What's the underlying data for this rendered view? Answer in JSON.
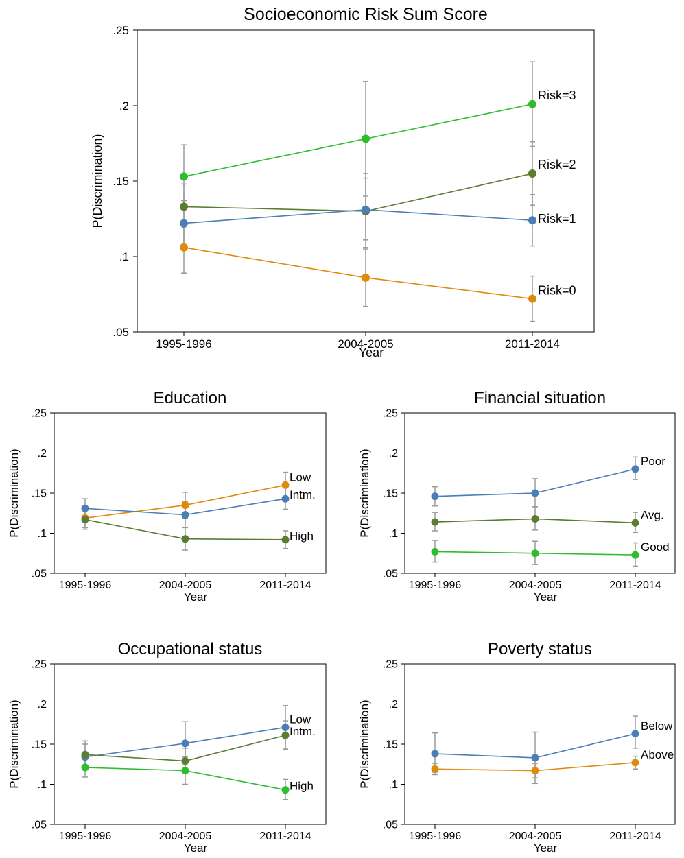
{
  "chart_data": [
    {
      "type": "line",
      "title": "Socioeconomic Risk Sum Score",
      "xlabel": "Year",
      "ylabel": "P(Discrimination)",
      "categories": [
        "1995-1996",
        "2004-2005",
        "2011-2014"
      ],
      "yticks": [
        ".05",
        ".1",
        ".15",
        ".2",
        ".25"
      ],
      "ylim": [
        0.05,
        0.25
      ],
      "grid": false,
      "legend": "inline-labels",
      "series": [
        {
          "name": "Risk=3",
          "color": "#2dbd2d",
          "values": [
            0.153,
            0.178,
            0.201
          ],
          "ci_low": [
            0.132,
            0.14,
            0.173
          ],
          "ci_high": [
            0.174,
            0.216,
            0.229
          ]
        },
        {
          "name": "Risk=2",
          "color": "#5a7d32",
          "values": [
            0.133,
            0.13,
            0.155
          ],
          "ci_low": [
            0.119,
            0.106,
            0.134
          ],
          "ci_high": [
            0.148,
            0.155,
            0.176
          ]
        },
        {
          "name": "Risk=1",
          "color": "#4a7eb5",
          "values": [
            0.122,
            0.131,
            0.124
          ],
          "ci_low": [
            0.107,
            0.111,
            0.107
          ],
          "ci_high": [
            0.137,
            0.152,
            0.141
          ]
        },
        {
          "name": "Risk=0",
          "color": "#e08a0c",
          "values": [
            0.106,
            0.086,
            0.072
          ],
          "ci_low": [
            0.089,
            0.067,
            0.057
          ],
          "ci_high": [
            0.123,
            0.105,
            0.087
          ]
        }
      ]
    },
    {
      "type": "line",
      "title": "Education",
      "xlabel": "Year",
      "ylabel": "P(Discrimination)",
      "categories": [
        "1995-1996",
        "2004-2005",
        "2011-2014"
      ],
      "yticks": [
        ".05",
        ".1",
        ".15",
        ".2",
        ".25"
      ],
      "ylim": [
        0.05,
        0.25
      ],
      "grid": false,
      "legend": "inline-labels",
      "series": [
        {
          "name": "Low",
          "color": "#e08a0c",
          "values": [
            0.119,
            0.135,
            0.16
          ],
          "ci_low": [
            0.107,
            0.119,
            0.144
          ],
          "ci_high": [
            0.131,
            0.151,
            0.176
          ]
        },
        {
          "name": "Intm.",
          "color": "#4a7eb5",
          "values": [
            0.131,
            0.123,
            0.143
          ],
          "ci_low": [
            0.119,
            0.107,
            0.13
          ],
          "ci_high": [
            0.143,
            0.139,
            0.157
          ]
        },
        {
          "name": "High",
          "color": "#5a7d32",
          "values": [
            0.117,
            0.093,
            0.092
          ],
          "ci_low": [
            0.105,
            0.079,
            0.081
          ],
          "ci_high": [
            0.129,
            0.107,
            0.103
          ]
        }
      ]
    },
    {
      "type": "line",
      "title": "Financial situation",
      "xlabel": "Year",
      "ylabel": "P(Discrimination)",
      "categories": [
        "1995-1996",
        "2004-2005",
        "2011-2014"
      ],
      "yticks": [
        ".05",
        ".1",
        ".15",
        ".2",
        ".25"
      ],
      "ylim": [
        0.05,
        0.25
      ],
      "grid": false,
      "legend": "inline-labels",
      "series": [
        {
          "name": "Poor",
          "color": "#4a7eb5",
          "values": [
            0.146,
            0.15,
            0.18
          ],
          "ci_low": [
            0.134,
            0.133,
            0.167
          ],
          "ci_high": [
            0.158,
            0.168,
            0.195
          ]
        },
        {
          "name": "Avg.",
          "color": "#5a7d32",
          "values": [
            0.114,
            0.118,
            0.113
          ],
          "ci_low": [
            0.103,
            0.104,
            0.101
          ],
          "ci_high": [
            0.126,
            0.133,
            0.126
          ]
        },
        {
          "name": "Good",
          "color": "#2dbd2d",
          "values": [
            0.077,
            0.075,
            0.073
          ],
          "ci_low": [
            0.064,
            0.061,
            0.059
          ],
          "ci_high": [
            0.091,
            0.09,
            0.088
          ]
        }
      ]
    },
    {
      "type": "line",
      "title": "Occupational status",
      "xlabel": "Year",
      "ylabel": "P(Discrimination)",
      "categories": [
        "1995-1996",
        "2004-2005",
        "2011-2014"
      ],
      "yticks": [
        ".05",
        ".1",
        ".15",
        ".2",
        ".25"
      ],
      "ylim": [
        0.05,
        0.25
      ],
      "grid": false,
      "legend": "inline-labels",
      "series": [
        {
          "name": "Low",
          "color": "#4a7eb5",
          "values": [
            0.134,
            0.151,
            0.171
          ],
          "ci_low": [
            0.121,
            0.124,
            0.144
          ],
          "ci_high": [
            0.15,
            0.178,
            0.198
          ]
        },
        {
          "name": "Intm.",
          "color": "#5a7d32",
          "values": [
            0.137,
            0.129,
            0.161
          ],
          "ci_low": [
            0.122,
            0.115,
            0.143
          ],
          "ci_high": [
            0.154,
            0.145,
            0.179
          ]
        },
        {
          "name": "High",
          "color": "#2dbd2d",
          "values": [
            0.121,
            0.117,
            0.093
          ],
          "ci_low": [
            0.109,
            0.1,
            0.081
          ],
          "ci_high": [
            0.133,
            0.134,
            0.106
          ]
        }
      ]
    },
    {
      "type": "line",
      "title": "Poverty status",
      "xlabel": "Year",
      "ylabel": "P(Discrimination)",
      "categories": [
        "1995-1996",
        "2004-2005",
        "2011-2014"
      ],
      "yticks": [
        ".05",
        ".1",
        ".15",
        ".2",
        ".25"
      ],
      "ylim": [
        0.05,
        0.25
      ],
      "grid": false,
      "legend": "inline-labels",
      "series": [
        {
          "name": "Below",
          "color": "#4a7eb5",
          "values": [
            0.138,
            0.133,
            0.163
          ],
          "ci_low": [
            0.115,
            0.101,
            0.145
          ],
          "ci_high": [
            0.164,
            0.165,
            0.185
          ]
        },
        {
          "name": "Above",
          "color": "#e08a0c",
          "values": [
            0.119,
            0.117,
            0.127
          ],
          "ci_low": [
            0.112,
            0.108,
            0.119
          ],
          "ci_high": [
            0.126,
            0.126,
            0.135
          ]
        }
      ]
    }
  ]
}
